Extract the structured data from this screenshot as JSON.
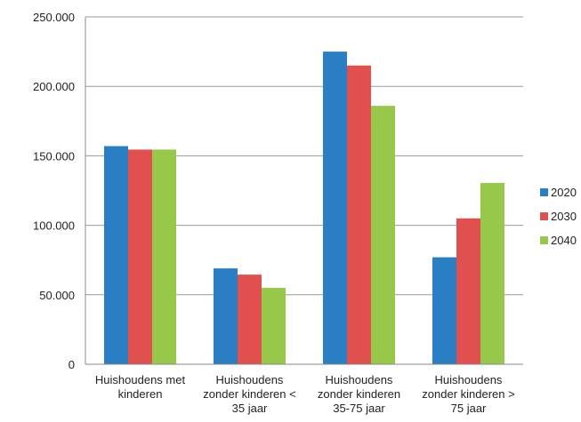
{
  "chart_data": {
    "type": "bar",
    "categories": [
      [
        "Huishoudens met",
        "kinderen"
      ],
      [
        "Huishoudens",
        "zonder kinderen <",
        "35 jaar"
      ],
      [
        "Huishoudens",
        "zonder kinderen",
        "35-75 jaar"
      ],
      [
        "Huishoudens",
        "zonder kinderen >",
        "75 jaar"
      ]
    ],
    "series": [
      {
        "name": "2020",
        "color": "#2a7fc4",
        "values": [
          157000,
          69000,
          225000,
          77000
        ]
      },
      {
        "name": "2030",
        "color": "#e0504e",
        "values": [
          154500,
          64500,
          215000,
          105000
        ]
      },
      {
        "name": "2040",
        "color": "#97c84a",
        "values": [
          154500,
          55000,
          186000,
          130500
        ]
      }
    ],
    "y_ticks": [
      {
        "value": 0,
        "label": "0"
      },
      {
        "value": 50000,
        "label": "50.000"
      },
      {
        "value": 100000,
        "label": "100.000"
      },
      {
        "value": 150000,
        "label": "150.000"
      },
      {
        "value": 200000,
        "label": "200.000"
      },
      {
        "value": 250000,
        "label": "250.000"
      }
    ],
    "ylim": [
      0,
      250000
    ],
    "grid": true,
    "legend_position": "right"
  }
}
